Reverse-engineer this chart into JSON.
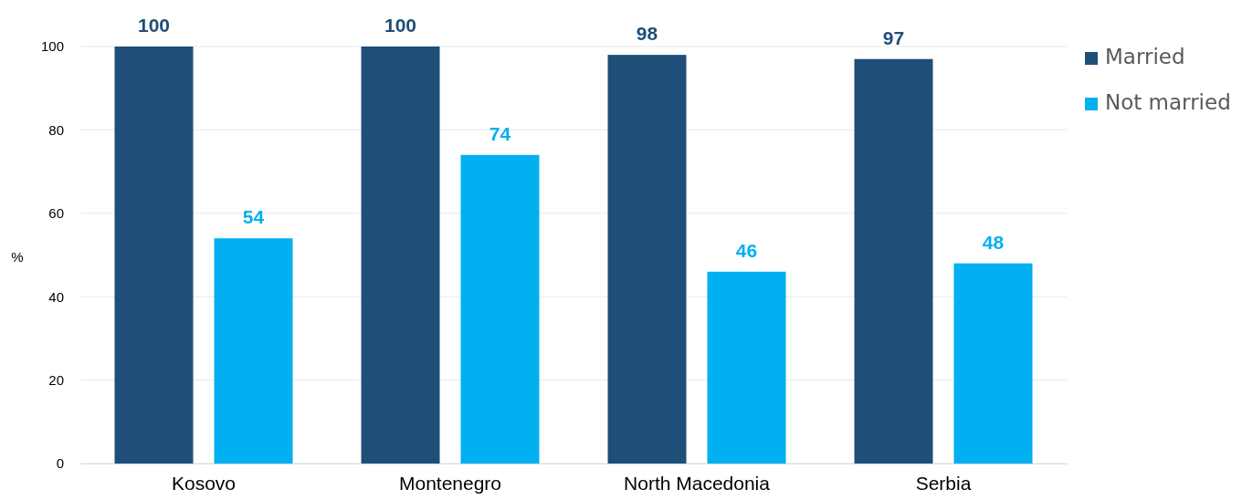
{
  "chart_data": {
    "type": "bar",
    "ylabel": "%",
    "categories": [
      "Kosovo",
      "Montenegro",
      "North Macedonia",
      "Serbia"
    ],
    "series": [
      {
        "name": "Married",
        "color": "#1f4e79",
        "values": [
          100,
          100,
          98,
          97
        ]
      },
      {
        "name": "Not married",
        "color": "#00b0f0",
        "values": [
          54,
          74,
          46,
          48
        ]
      }
    ],
    "ylim": [
      0,
      100
    ],
    "yticks": [
      0,
      20,
      40,
      60,
      80,
      100
    ],
    "grid": "y",
    "legend": "top right",
    "data_labels": true
  }
}
